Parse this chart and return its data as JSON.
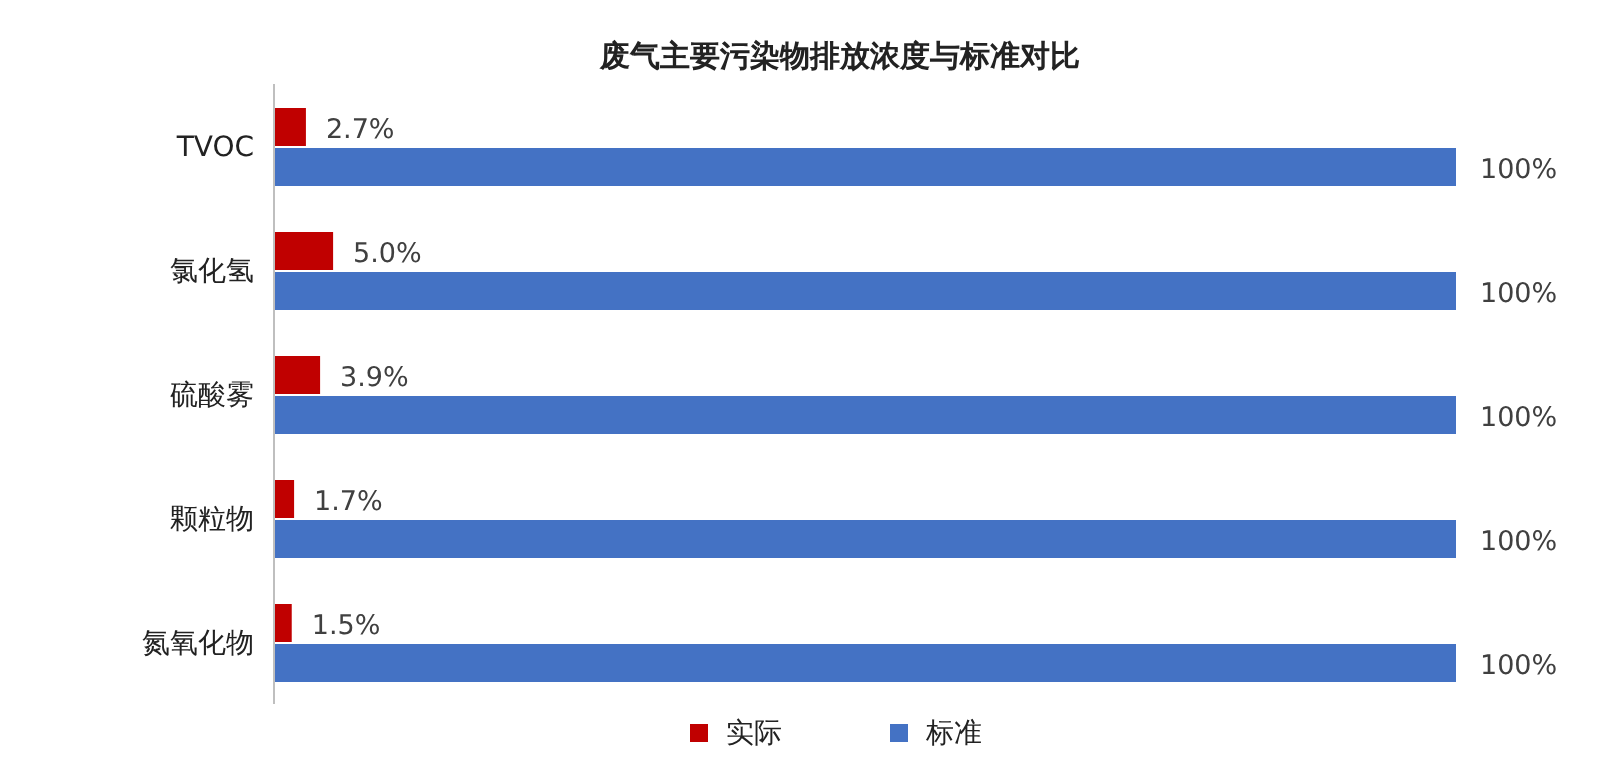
{
  "chart_data": {
    "type": "bar",
    "orientation": "horizontal",
    "title": "废气主要污染物排放浓度与标准对比",
    "categories": [
      "TVOC",
      "氯化氢",
      "硫酸雾",
      "颗粒物",
      "氮氧化物"
    ],
    "series": [
      {
        "name": "实际",
        "color": "#c00000",
        "values": [
          2.7,
          5.0,
          3.9,
          1.7,
          1.5
        ],
        "value_labels": [
          "2.7%",
          "5.0%",
          "3.9%",
          "1.7%",
          "1.5%"
        ]
      },
      {
        "name": "标准",
        "color": "#4472c4",
        "values": [
          100,
          100,
          100,
          100,
          100
        ],
        "value_labels": [
          "100%",
          "100%",
          "100%",
          "100%",
          "100%"
        ]
      }
    ],
    "legend": "bottom",
    "grid": false
  }
}
